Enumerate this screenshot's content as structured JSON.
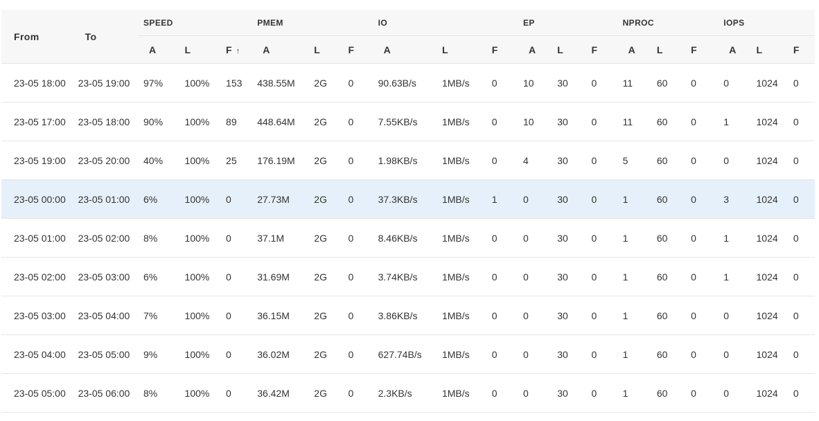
{
  "header": {
    "from_label": "From",
    "to_label": "To",
    "groups": [
      "SPEED",
      "PMEM",
      "IO",
      "EP",
      "NPROC",
      "IOPS"
    ],
    "sub_labels": [
      "A",
      "L",
      "F"
    ],
    "sort_arrow": "↑"
  },
  "rows": [
    {
      "from": "23-05 18:00",
      "to": "23-05 19:00",
      "cells": [
        "97%",
        "100%",
        "153",
        "438.55M",
        "2G",
        "0",
        "90.63B/s",
        "1MB/s",
        "0",
        "10",
        "30",
        "0",
        "11",
        "60",
        "0",
        "0",
        "1024",
        "0"
      ]
    },
    {
      "from": "23-05 17:00",
      "to": "23-05 18:00",
      "cells": [
        "90%",
        "100%",
        "89",
        "448.64M",
        "2G",
        "0",
        "7.55KB/s",
        "1MB/s",
        "0",
        "10",
        "30",
        "0",
        "11",
        "60",
        "0",
        "1",
        "1024",
        "0"
      ]
    },
    {
      "from": "23-05 19:00",
      "to": "23-05 20:00",
      "cells": [
        "40%",
        "100%",
        "25",
        "176.19M",
        "2G",
        "0",
        "1.98KB/s",
        "1MB/s",
        "0",
        "4",
        "30",
        "0",
        "5",
        "60",
        "0",
        "0",
        "1024",
        "0"
      ]
    },
    {
      "from": "23-05 00:00",
      "to": "23-05 01:00",
      "cells": [
        "6%",
        "100%",
        "0",
        "27.73M",
        "2G",
        "0",
        "37.3KB/s",
        "1MB/s",
        "1",
        "0",
        "30",
        "0",
        "1",
        "60",
        "0",
        "3",
        "1024",
        "0"
      ],
      "selected": true
    },
    {
      "from": "23-05 01:00",
      "to": "23-05 02:00",
      "cells": [
        "8%",
        "100%",
        "0",
        "37.1M",
        "2G",
        "0",
        "8.46KB/s",
        "1MB/s",
        "0",
        "0",
        "30",
        "0",
        "1",
        "60",
        "0",
        "1",
        "1024",
        "0"
      ]
    },
    {
      "from": "23-05 02:00",
      "to": "23-05 03:00",
      "cells": [
        "6%",
        "100%",
        "0",
        "31.69M",
        "2G",
        "0",
        "3.74KB/s",
        "1MB/s",
        "0",
        "0",
        "30",
        "0",
        "1",
        "60",
        "0",
        "1",
        "1024",
        "0"
      ]
    },
    {
      "from": "23-05 03:00",
      "to": "23-05 04:00",
      "cells": [
        "7%",
        "100%",
        "0",
        "36.15M",
        "2G",
        "0",
        "3.86KB/s",
        "1MB/s",
        "0",
        "0",
        "30",
        "0",
        "1",
        "60",
        "0",
        "0",
        "1024",
        "0"
      ]
    },
    {
      "from": "23-05 04:00",
      "to": "23-05 05:00",
      "cells": [
        "9%",
        "100%",
        "0",
        "36.02M",
        "2G",
        "0",
        "627.74B/s",
        "1MB/s",
        "0",
        "0",
        "30",
        "0",
        "1",
        "60",
        "0",
        "0",
        "1024",
        "0"
      ]
    },
    {
      "from": "23-05 05:00",
      "to": "23-05 06:00",
      "cells": [
        "8%",
        "100%",
        "0",
        "36.42M",
        "2G",
        "0",
        "2.3KB/s",
        "1MB/s",
        "0",
        "0",
        "30",
        "0",
        "1",
        "60",
        "0",
        "0",
        "1024",
        "0"
      ]
    }
  ]
}
